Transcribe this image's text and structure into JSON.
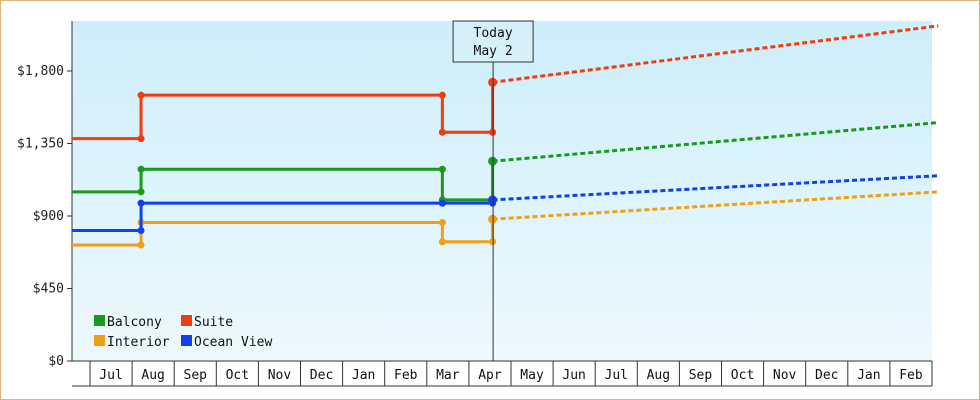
{
  "chart_data": {
    "type": "line",
    "y_ticks": [
      "$0",
      "$450",
      "$900",
      "$1,350",
      "$1,800"
    ],
    "y_tick_values": [
      0,
      450,
      900,
      1350,
      1800
    ],
    "ylim": [
      0,
      2100
    ],
    "x_months": [
      "Jul",
      "Aug",
      "Sep",
      "Oct",
      "Nov",
      "Dec",
      "Jan",
      "Feb",
      "Mar",
      "Apr",
      "May",
      "Jun",
      "Jul",
      "Aug",
      "Sep",
      "Oct",
      "Nov",
      "Dec",
      "Jan",
      "Feb"
    ],
    "today": {
      "line1": "Today",
      "line2": "May 2",
      "month_index": 10.05
    },
    "grid": false,
    "legend_position": "bottom-left",
    "series": [
      {
        "name": "Balcony",
        "color": "#1a9a1a",
        "actual": [
          [
            0,
            1050
          ],
          [
            1.65,
            1050
          ],
          [
            1.65,
            1190
          ],
          [
            8.85,
            1190
          ],
          [
            8.85,
            1000
          ],
          [
            10.05,
            1000
          ],
          [
            10.05,
            1240
          ]
        ],
        "forecast": [
          [
            10.05,
            1240
          ],
          [
            20.7,
            1480
          ]
        ]
      },
      {
        "name": "Suite",
        "color": "#f03c10",
        "actual": [
          [
            0,
            1380
          ],
          [
            1.65,
            1380
          ],
          [
            1.65,
            1650
          ],
          [
            8.85,
            1650
          ],
          [
            8.85,
            1420
          ],
          [
            10.05,
            1420
          ],
          [
            10.05,
            1730
          ]
        ],
        "forecast": [
          [
            10.05,
            1730
          ],
          [
            20.7,
            2080
          ]
        ]
      },
      {
        "name": "Interior",
        "color": "#f0a014",
        "actual": [
          [
            0,
            720
          ],
          [
            1.65,
            720
          ],
          [
            1.65,
            860
          ],
          [
            8.85,
            860
          ],
          [
            8.85,
            740
          ],
          [
            10.05,
            740
          ],
          [
            10.05,
            880
          ]
        ],
        "forecast": [
          [
            10.05,
            880
          ],
          [
            20.7,
            1050
          ]
        ]
      },
      {
        "name": "Ocean View",
        "color": "#1040f0",
        "actual": [
          [
            0,
            810
          ],
          [
            1.65,
            810
          ],
          [
            1.65,
            980
          ],
          [
            8.85,
            980
          ],
          [
            8.85,
            980
          ],
          [
            10.05,
            980
          ],
          [
            10.05,
            1000
          ]
        ],
        "forecast": [
          [
            10.05,
            1000
          ],
          [
            20.7,
            1150
          ]
        ]
      }
    ]
  }
}
